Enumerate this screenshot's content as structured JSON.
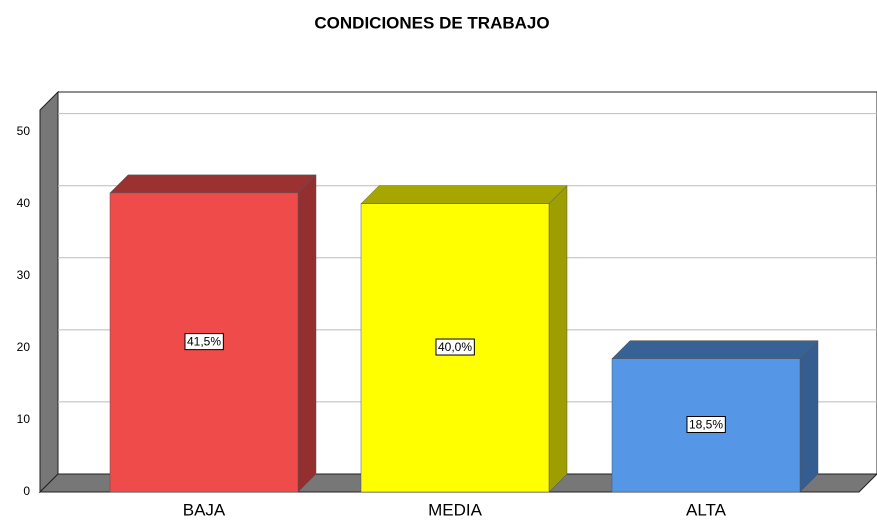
{
  "chart_data": {
    "type": "bar",
    "title": "CONDICIONES DE TRABAJO",
    "categories": [
      "BAJA",
      "MEDIA",
      "ALTA"
    ],
    "values": [
      41.5,
      40.0,
      18.5
    ],
    "value_labels": [
      "41,5%",
      "40,0%",
      "18,5%"
    ],
    "colors": [
      "#ef4b4b",
      "#ffff00",
      "#5596e6"
    ],
    "ylim": [
      0,
      53
    ],
    "yticks": [
      0,
      10,
      20,
      30,
      40,
      50
    ],
    "grid": true
  }
}
